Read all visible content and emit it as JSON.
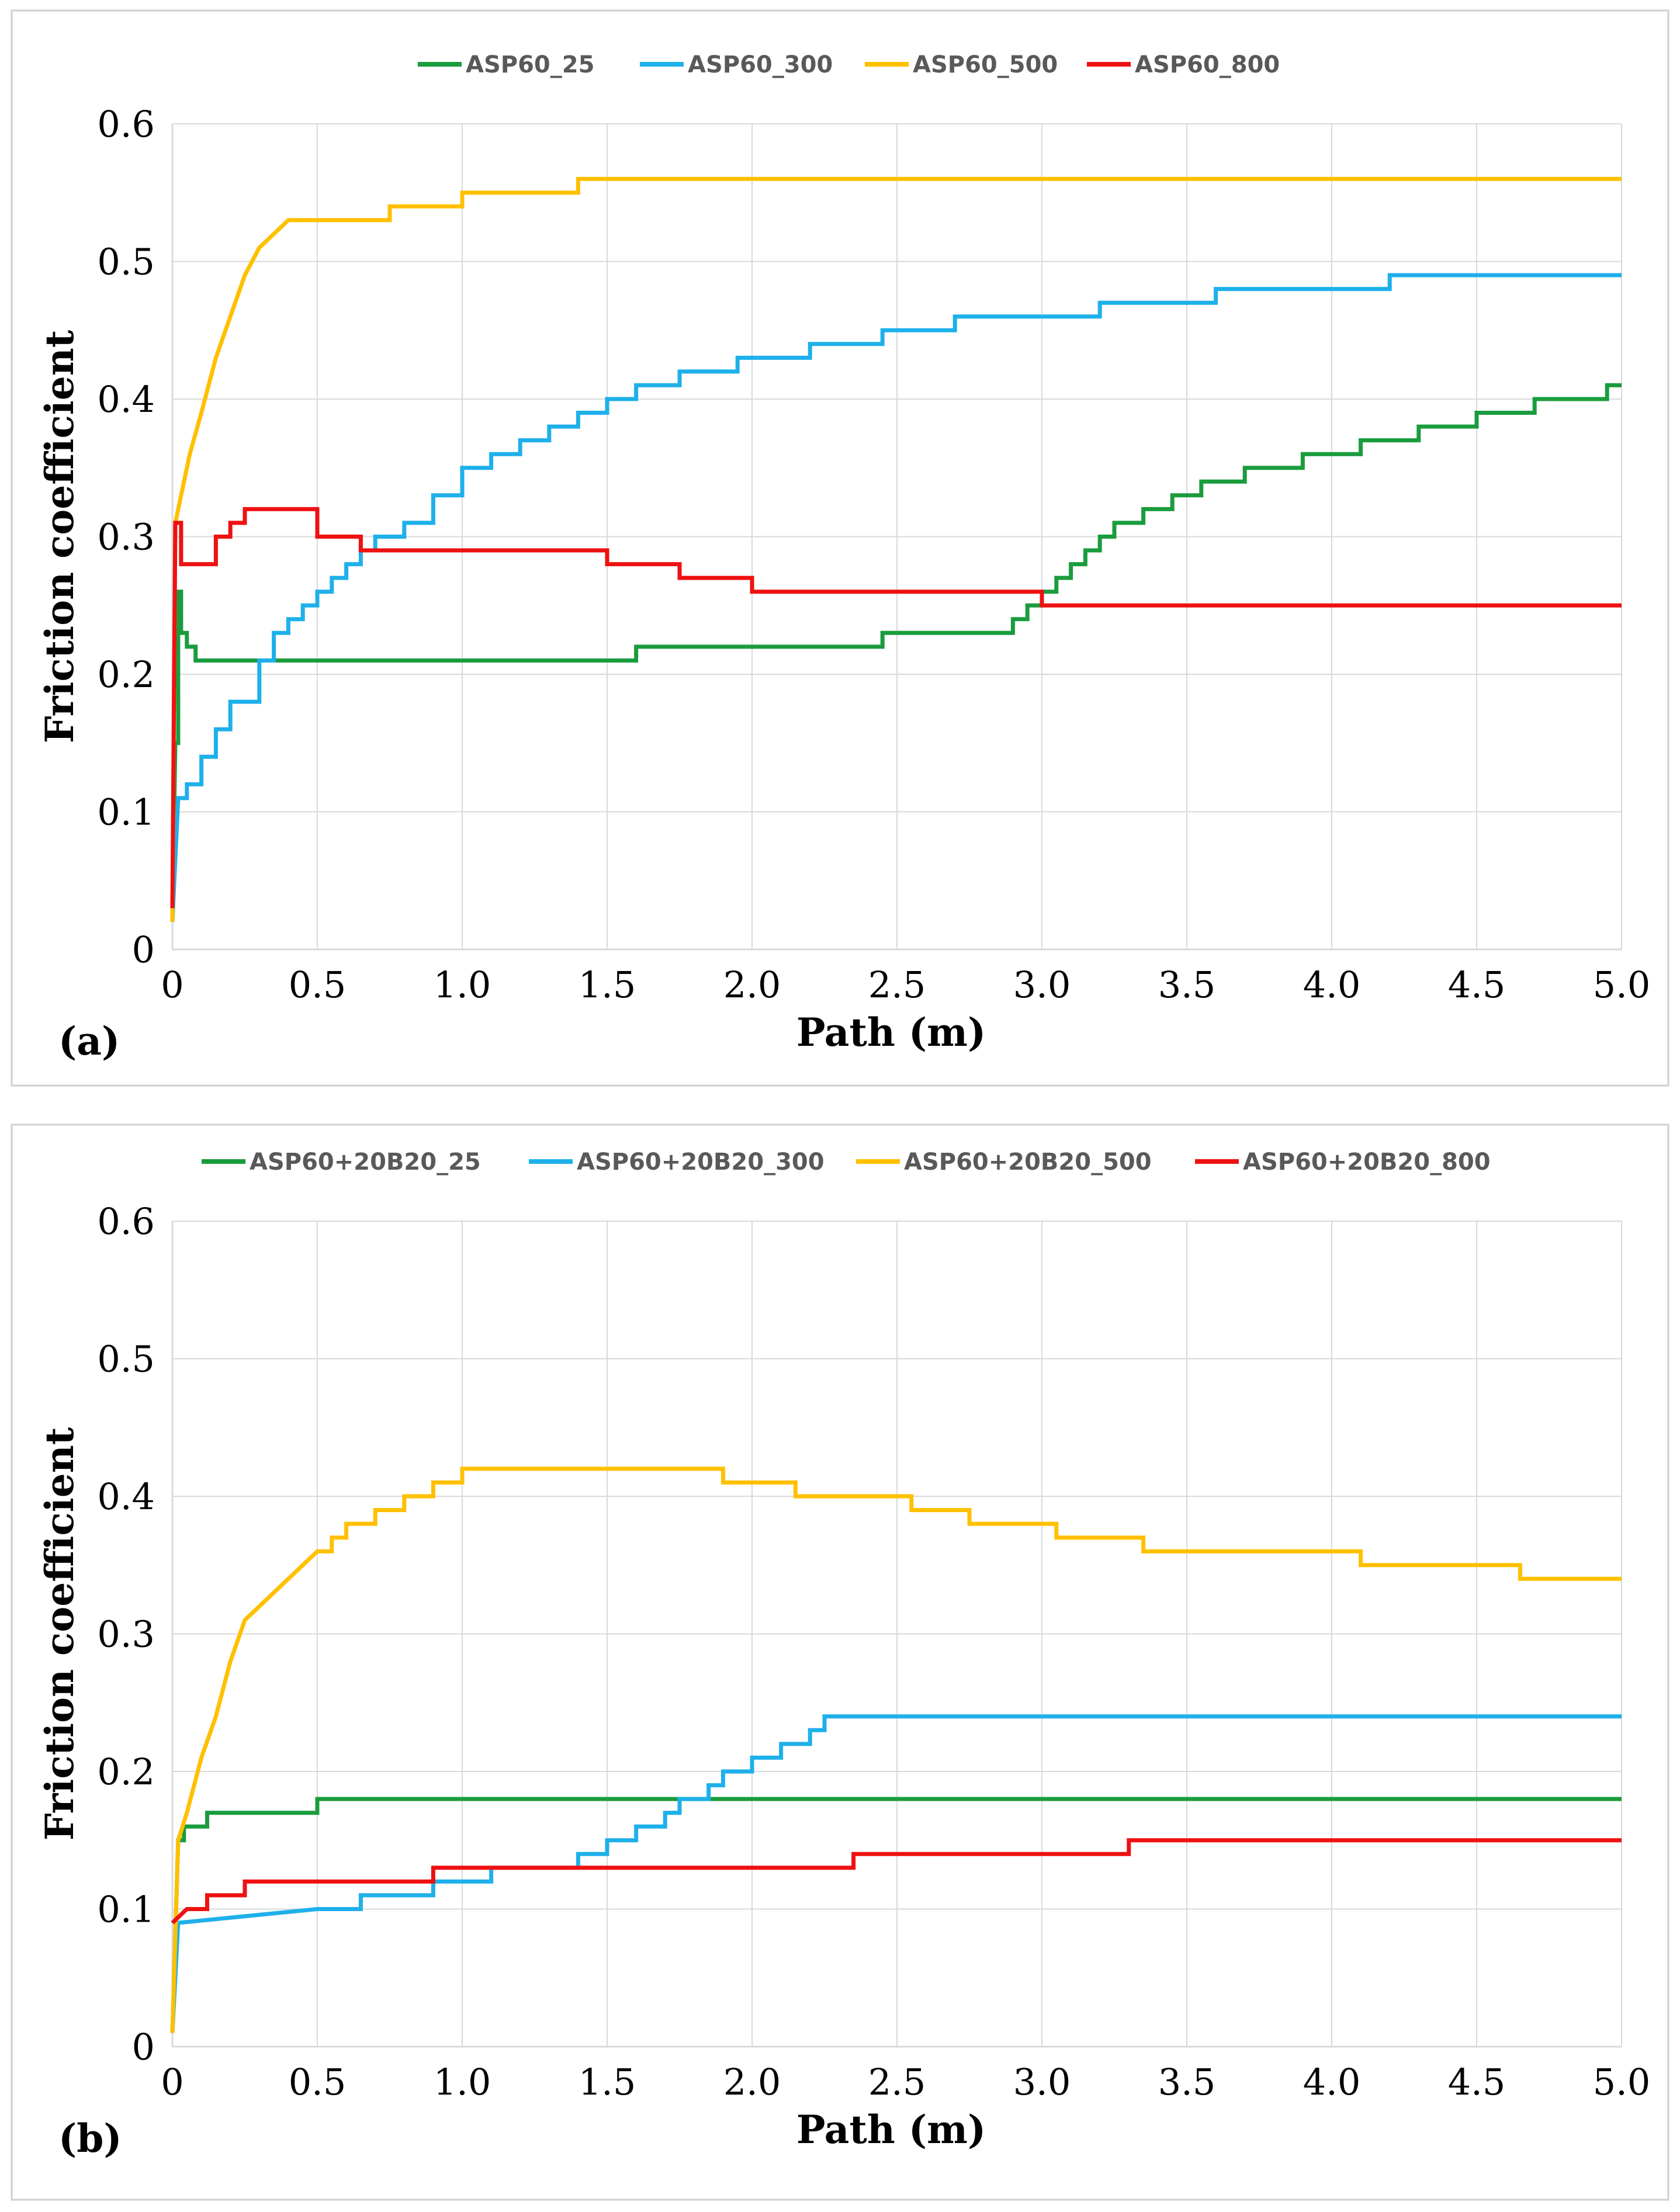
{
  "chart_data": [
    {
      "type": "line",
      "panel_label": "(a)",
      "xlabel": "Path (m)",
      "ylabel": "Friction coefficient",
      "xlim": [
        0,
        5
      ],
      "ylim": [
        0,
        0.6
      ],
      "xticks": [
        0,
        0.5,
        1.0,
        1.5,
        2.0,
        2.5,
        3.0,
        3.5,
        4.0,
        4.5,
        5.0
      ],
      "xtick_labels": [
        "0",
        "0.5",
        "1.0",
        "1.5",
        "2.0",
        "2.5",
        "3.0",
        "3.5",
        "4.0",
        "4.5",
        "5.0"
      ],
      "yticks": [
        0,
        0.1,
        0.2,
        0.3,
        0.4,
        0.5,
        0.6
      ],
      "ytick_labels": [
        "0",
        "0.1",
        "0.2",
        "0.3",
        "0.4",
        "0.5",
        "0.6"
      ],
      "grid": true,
      "legend_position": "top",
      "series": [
        {
          "name": "ASP60_25",
          "color": "#1a9c3e",
          "x": [
            0,
            0.01,
            0.02,
            0.03,
            0.05,
            0.08,
            0.5,
            1.0,
            1.5,
            1.6,
            2.0,
            2.45,
            2.5,
            2.9,
            2.95,
            3.0,
            3.05,
            3.1,
            3.15,
            3.2,
            3.25,
            3.3,
            3.35,
            3.45,
            3.55,
            3.7,
            3.9,
            4.1,
            4.3,
            4.5,
            4.7,
            4.95,
            5.0
          ],
          "y": [
            0.02,
            0.15,
            0.26,
            0.23,
            0.22,
            0.21,
            0.21,
            0.21,
            0.21,
            0.22,
            0.22,
            0.23,
            0.23,
            0.24,
            0.25,
            0.26,
            0.27,
            0.28,
            0.29,
            0.3,
            0.31,
            0.31,
            0.32,
            0.33,
            0.34,
            0.35,
            0.36,
            0.37,
            0.38,
            0.39,
            0.4,
            0.41,
            0.41
          ]
        },
        {
          "name": "ASP60_300",
          "color": "#1eb0ea",
          "x": [
            0,
            0.02,
            0.05,
            0.1,
            0.15,
            0.2,
            0.3,
            0.35,
            0.4,
            0.45,
            0.5,
            0.55,
            0.6,
            0.65,
            0.7,
            0.8,
            0.9,
            1.0,
            1.1,
            1.2,
            1.3,
            1.4,
            1.5,
            1.6,
            1.75,
            1.95,
            2.2,
            2.45,
            2.7,
            3.0,
            3.2,
            3.6,
            4.0,
            4.2,
            4.6,
            5.0
          ],
          "y": [
            0.02,
            0.11,
            0.12,
            0.14,
            0.16,
            0.18,
            0.21,
            0.23,
            0.24,
            0.25,
            0.26,
            0.27,
            0.28,
            0.29,
            0.3,
            0.31,
            0.33,
            0.35,
            0.36,
            0.37,
            0.38,
            0.39,
            0.4,
            0.41,
            0.42,
            0.43,
            0.44,
            0.45,
            0.46,
            0.46,
            0.47,
            0.48,
            0.48,
            0.49,
            0.49,
            0.49
          ]
        },
        {
          "name": "ASP60_500",
          "color": "#ffc000",
          "x": [
            0,
            0.01,
            0.03,
            0.06,
            0.1,
            0.15,
            0.2,
            0.25,
            0.3,
            0.35,
            0.4,
            0.5,
            0.75,
            1.0,
            1.2,
            1.4,
            1.6,
            2.0,
            3.0,
            4.0,
            5.0
          ],
          "y": [
            0.02,
            0.31,
            0.33,
            0.36,
            0.39,
            0.43,
            0.46,
            0.49,
            0.51,
            0.52,
            0.53,
            0.53,
            0.54,
            0.55,
            0.55,
            0.56,
            0.56,
            0.56,
            0.56,
            0.56,
            0.56
          ],
          "dense": true
        },
        {
          "name": "ASP60_800",
          "color": "#ee1111",
          "x": [
            0,
            0.01,
            0.03,
            0.1,
            0.15,
            0.2,
            0.25,
            0.5,
            0.65,
            1.0,
            1.5,
            1.75,
            2.0,
            2.5,
            3.0,
            3.5,
            4.0,
            5.0
          ],
          "y": [
            0.03,
            0.31,
            0.28,
            0.28,
            0.3,
            0.31,
            0.32,
            0.3,
            0.29,
            0.29,
            0.28,
            0.27,
            0.26,
            0.26,
            0.25,
            0.25,
            0.25,
            0.25
          ]
        }
      ]
    },
    {
      "type": "line",
      "panel_label": "(b)",
      "xlabel": "Path (m)",
      "ylabel": "Friction coefficient",
      "xlim": [
        0,
        5
      ],
      "ylim": [
        0,
        0.6
      ],
      "xticks": [
        0,
        0.5,
        1.0,
        1.5,
        2.0,
        2.5,
        3.0,
        3.5,
        4.0,
        4.5,
        5.0
      ],
      "xtick_labels": [
        "0",
        "0.5",
        "1.0",
        "1.5",
        "2.0",
        "2.5",
        "3.0",
        "3.5",
        "4.0",
        "4.5",
        "5.0"
      ],
      "yticks": [
        0,
        0.1,
        0.2,
        0.3,
        0.4,
        0.5,
        0.6
      ],
      "ytick_labels": [
        "0",
        "0.1",
        "0.2",
        "0.3",
        "0.4",
        "0.5",
        "0.6"
      ],
      "grid": true,
      "legend_position": "top",
      "series": [
        {
          "name": "ASP60+20B20_25",
          "color": "#1a9c3e",
          "x": [
            0,
            0.02,
            0.04,
            0.12,
            0.5,
            1.0,
            2.0,
            3.0,
            4.0,
            5.0
          ],
          "y": [
            0.01,
            0.15,
            0.16,
            0.17,
            0.18,
            0.18,
            0.18,
            0.18,
            0.18,
            0.18
          ]
        },
        {
          "name": "ASP60+20B20_300",
          "color": "#1eb0ea",
          "x": [
            0,
            0.02,
            0.5,
            0.65,
            0.9,
            1.1,
            1.4,
            1.5,
            1.6,
            1.7,
            1.75,
            1.85,
            1.9,
            2.0,
            2.1,
            2.2,
            2.25,
            2.5,
            3.0,
            4.0,
            5.0
          ],
          "y": [
            0.01,
            0.09,
            0.1,
            0.11,
            0.12,
            0.13,
            0.14,
            0.15,
            0.16,
            0.17,
            0.18,
            0.19,
            0.2,
            0.21,
            0.22,
            0.23,
            0.24,
            0.24,
            0.24,
            0.24,
            0.24
          ],
          "dense": true
        },
        {
          "name": "ASP60+20B20_500",
          "color": "#ffc000",
          "x": [
            0,
            0.02,
            0.05,
            0.1,
            0.15,
            0.2,
            0.25,
            0.3,
            0.35,
            0.4,
            0.45,
            0.5,
            0.55,
            0.6,
            0.7,
            0.8,
            0.9,
            1.0,
            1.2,
            1.5,
            1.9,
            2.15,
            2.55,
            2.75,
            3.05,
            3.35,
            4.1,
            4.65,
            5.0
          ],
          "y": [
            0.01,
            0.15,
            0.17,
            0.21,
            0.24,
            0.28,
            0.31,
            0.32,
            0.33,
            0.34,
            0.35,
            0.36,
            0.37,
            0.38,
            0.39,
            0.4,
            0.41,
            0.42,
            0.42,
            0.42,
            0.41,
            0.4,
            0.39,
            0.38,
            0.37,
            0.36,
            0.35,
            0.34,
            0.34
          ],
          "dense": true
        },
        {
          "name": "ASP60+20B20_800",
          "color": "#ee1111",
          "x": [
            0,
            0.05,
            0.12,
            0.25,
            0.5,
            0.9,
            1.5,
            2.35,
            3.3,
            4.0,
            5.0
          ],
          "y": [
            0.09,
            0.1,
            0.11,
            0.12,
            0.12,
            0.13,
            0.13,
            0.14,
            0.15,
            0.15,
            0.15
          ]
        }
      ]
    }
  ]
}
